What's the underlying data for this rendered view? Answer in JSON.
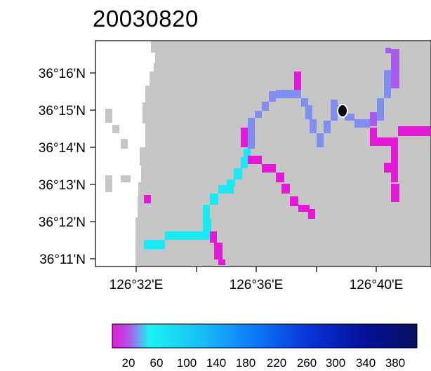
{
  "title": "20030820",
  "y_ticks": [
    "36°16'N",
    "36°15'N",
    "36°14'N",
    "36°13'N",
    "36°12'N",
    "36°11'N"
  ],
  "x_ticks": [
    "126°32'E",
    "126°36'E",
    "126°40'E"
  ],
  "colorbar": {
    "ticks": [
      "20",
      "60",
      "100",
      "140",
      "180",
      "220",
      "260",
      "300",
      "340",
      "380"
    ],
    "stops": [
      "#e21ad8",
      "#b44ee6",
      "#7f8ef0",
      "#1bf3f3",
      "#18bdf7",
      "#0c77f8",
      "#0833d8",
      "#06109c",
      "#061060"
    ]
  },
  "colors": {
    "land": "#c6c6c6",
    "sea": "#ffffff",
    "magenta": "#e21ad8",
    "purple": "#a85ce9",
    "blue": "#7f8ef0",
    "cyan": "#1ae9f3",
    "marker": "#000000"
  }
}
